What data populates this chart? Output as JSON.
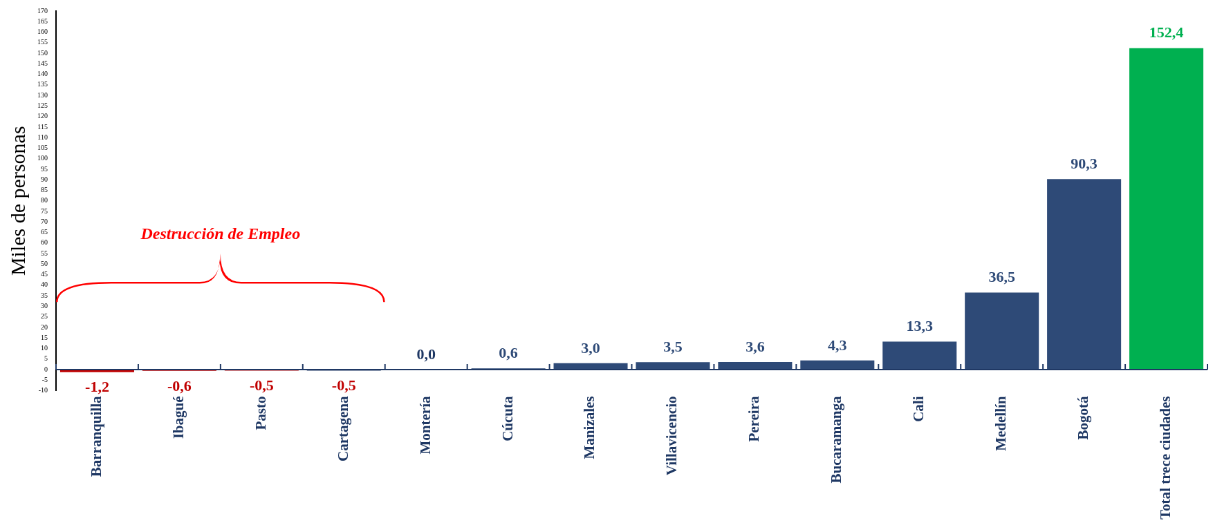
{
  "chart_data": {
    "type": "bar",
    "ylabel": "Miles de personas",
    "categories": [
      "Barranquilla",
      "Ibagué",
      "Pasto",
      "Cartagena",
      "Montería",
      "Cúcuta",
      "Manizales",
      "Villavicencio",
      "Pereira",
      "Bucaramanga",
      "Cali",
      "Medellín",
      "Bogotá",
      "Total trece ciudades"
    ],
    "values": [
      -1.2,
      -0.6,
      -0.5,
      -0.5,
      0.0,
      0.6,
      3.0,
      3.5,
      3.6,
      4.3,
      13.3,
      36.5,
      90.3,
      152.4
    ],
    "colors": [
      "#c00000",
      "#c00000",
      "#c00000",
      "#1f3864",
      "#1f3864",
      "#2e4a77",
      "#2e4a77",
      "#2e4a77",
      "#2e4a77",
      "#2e4a77",
      "#2e4a77",
      "#2e4a77",
      "#2e4a77",
      "#00b050"
    ],
    "value_labels": [
      "-1,2",
      "-0,6",
      "-0,5",
      "-0,5",
      "0,0",
      "0,6",
      "3,0",
      "3,5",
      "3,6",
      "4,3",
      "13,3",
      "36,5",
      "90,3",
      "152,4"
    ],
    "ylim": [
      -10,
      170
    ],
    "yticks": [
      -10,
      -5,
      0,
      5,
      10,
      15,
      20,
      25,
      30,
      35,
      40,
      45,
      50,
      55,
      60,
      65,
      70,
      75,
      80,
      85,
      90,
      95,
      100,
      105,
      110,
      115,
      120,
      125,
      130,
      135,
      140,
      145,
      150,
      155,
      160,
      165,
      170
    ],
    "annotations": [
      "Destrucción de Empleo"
    ],
    "grid": false,
    "legend": false
  }
}
